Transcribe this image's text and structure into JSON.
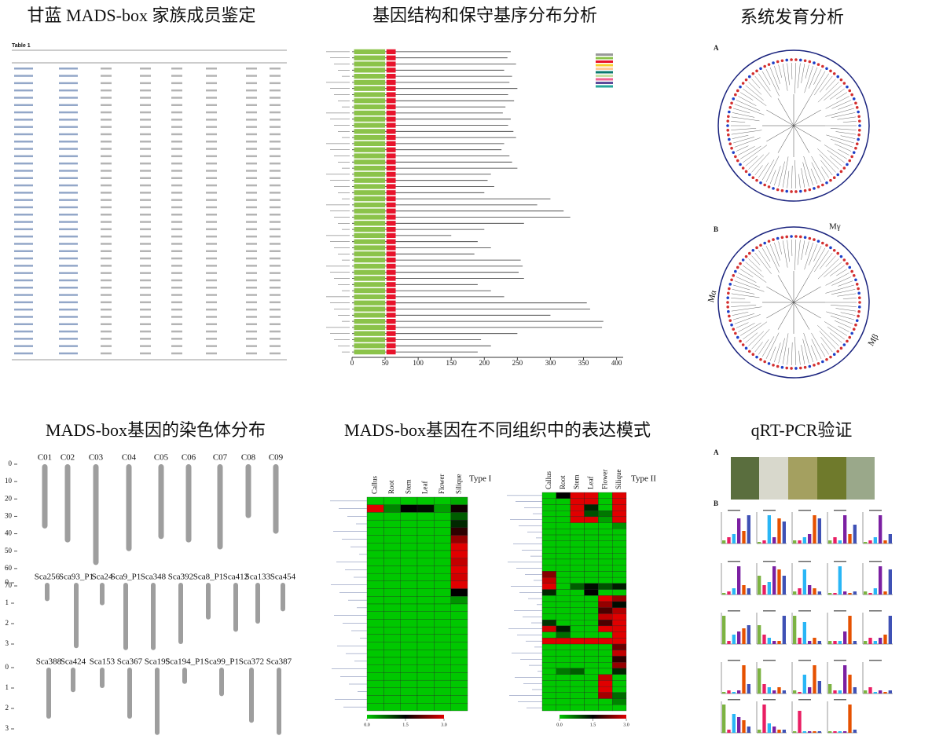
{
  "table_panel": {
    "title": "甘蓝 MADS-box 家族成员鉴定",
    "caption": "Table 1"
  },
  "gene_structure": {
    "title": "基因结构和保守基序分布分析",
    "lengths": [
      240,
      235,
      248,
      230,
      242,
      238,
      250,
      236,
      245,
      232,
      228,
      240,
      236,
      244,
      248,
      230,
      226,
      238,
      242,
      250,
      210,
      205,
      215,
      200,
      300,
      280,
      320,
      330,
      260,
      200,
      150,
      190,
      210,
      185,
      255,
      258,
      252,
      260,
      190,
      210,
      230,
      355,
      360,
      300,
      380,
      378,
      250,
      195,
      210,
      190
    ],
    "motifs": [
      {
        "color": "#8bc34a",
        "start": 3,
        "end": 50
      },
      {
        "color": "#e8132b",
        "start": 52,
        "end": 66
      }
    ],
    "xlim": [
      0,
      410
    ],
    "xticks": [
      0,
      50,
      100,
      150,
      200,
      250,
      300,
      350,
      400
    ]
  },
  "phylogeny": {
    "title": "系统发育分析",
    "tree_a_label": "A",
    "tree_b_label": "B",
    "clades_b": [
      "Mγ",
      "Mα",
      "Mβ"
    ]
  },
  "chromosome": {
    "title": "MADS-box基因的染色体分布",
    "ylim": [
      0,
      70
    ],
    "yticks": [
      0,
      10,
      20,
      30,
      40,
      50,
      60,
      70
    ],
    "chromosomes": [
      "C01",
      "C02",
      "C03",
      "C04",
      "C05",
      "C06",
      "C07",
      "C08",
      "C09"
    ],
    "lengths": [
      37,
      45,
      58,
      50,
      43,
      45,
      49,
      31,
      40
    ],
    "scaffold_rows": [
      {
        "names": [
          "Sca256",
          "Sca93_P1",
          "Sca24",
          "Sca9_P1",
          "Sca348",
          "Sca392",
          "Sca8_P1",
          "Sca412",
          "Sca133",
          "Sca454"
        ],
        "lengths": [
          0.9,
          3.2,
          1.1,
          3.3,
          3.3,
          3.0,
          1.8,
          2.4,
          2.0,
          1.4
        ],
        "ylim": [
          0,
          3.5
        ],
        "yticks": [
          0,
          1,
          2,
          3
        ]
      },
      {
        "names": [
          "Sca388",
          "Sca424",
          "Sca153",
          "Sca367",
          "Sca195",
          "Sca194_P1",
          "Sca99_P1",
          "Sca372",
          "Sca387"
        ],
        "lengths": [
          2.5,
          1.2,
          1.0,
          2.5,
          3.3,
          0.8,
          1.4,
          2.7,
          3.3
        ],
        "ylim": [
          0,
          3.5
        ],
        "yticks": [
          0,
          1,
          2,
          3
        ]
      }
    ]
  },
  "heatmap": {
    "title": "MADS-box基因在不同组织中的表达模式",
    "tissues": [
      "Callus",
      "Root",
      "Stem",
      "Leaf",
      "Flower",
      "Silique"
    ],
    "colors": [
      "#00c800",
      "#000000",
      "#e00000"
    ],
    "scale_ticks": [
      {
        "value": 0,
        "label": "0.0"
      },
      {
        "value": 1.5,
        "label": "1.5"
      },
      {
        "value": 3,
        "label": "3.0"
      }
    ],
    "groups": [
      {
        "name": "Type I",
        "rows": [
          [
            0,
            0,
            0,
            0,
            0,
            0.2
          ],
          [
            3,
            0.5,
            1.5,
            1.4,
            0.3,
            1.6
          ],
          [
            0,
            0,
            0,
            0,
            0,
            0.8
          ],
          [
            0,
            0,
            0,
            0,
            0,
            1.2
          ],
          [
            0,
            0,
            0,
            0,
            0,
            1.8
          ],
          [
            0,
            0,
            0,
            0,
            0,
            2.5
          ],
          [
            0,
            0,
            0,
            0,
            0,
            3
          ],
          [
            0,
            0,
            0,
            0,
            0,
            3
          ],
          [
            0,
            0,
            0,
            0,
            0,
            2.8
          ],
          [
            0,
            0,
            0,
            0,
            0,
            3
          ],
          [
            0,
            0,
            0,
            0,
            0,
            2.9
          ],
          [
            0,
            0,
            0,
            0,
            0,
            3
          ],
          [
            0,
            0,
            0,
            0,
            0,
            1.5
          ],
          [
            0,
            0,
            0,
            0,
            0,
            0.4
          ],
          [
            0,
            0,
            0,
            0,
            0,
            0
          ],
          [
            0,
            0,
            0,
            0,
            0,
            0
          ],
          [
            0,
            0,
            0,
            0,
            0,
            0
          ],
          [
            0,
            0,
            0,
            0,
            0,
            0
          ],
          [
            0,
            0,
            0,
            0,
            0,
            0
          ],
          [
            0,
            0,
            0,
            0,
            0,
            0
          ],
          [
            0,
            0,
            0,
            0,
            0,
            0
          ],
          [
            0,
            0,
            0,
            0,
            0,
            0
          ],
          [
            0,
            0,
            0,
            0,
            0,
            0
          ],
          [
            0,
            0,
            0,
            0,
            0,
            0
          ],
          [
            0,
            0,
            0,
            0,
            0,
            0
          ],
          [
            0,
            0,
            0,
            0,
            0,
            0
          ],
          [
            0,
            0,
            0,
            0,
            0,
            0
          ],
          [
            0,
            0,
            0,
            0,
            0,
            0
          ]
        ]
      },
      {
        "name": "Type II",
        "rows": [
          [
            0,
            1.5,
            3,
            3,
            0,
            3
          ],
          [
            0,
            0,
            3,
            3,
            0,
            3
          ],
          [
            0,
            0,
            3,
            1.2,
            0,
            3
          ],
          [
            0,
            0,
            3,
            0.9,
            0.6,
            3
          ],
          [
            0,
            0,
            3,
            3,
            0.3,
            3
          ],
          [
            0,
            0,
            0,
            0,
            0,
            0.4
          ],
          [
            0,
            0,
            0,
            0,
            0,
            0
          ],
          [
            0,
            0,
            0,
            0,
            0,
            0
          ],
          [
            0,
            0,
            0,
            0,
            0,
            0
          ],
          [
            0,
            0,
            0,
            0,
            0,
            0
          ],
          [
            0,
            0,
            0,
            0,
            0,
            0
          ],
          [
            0,
            0,
            0,
            0,
            0,
            0
          ],
          [
            0,
            0,
            0,
            0,
            0,
            0
          ],
          [
            2.4,
            0,
            0,
            0,
            0,
            0
          ],
          [
            2.8,
            0,
            0,
            0,
            0,
            0
          ],
          [
            3,
            0,
            0.8,
            1.4,
            0.9,
            1.3
          ],
          [
            1.2,
            0,
            0,
            1.5,
            0,
            0
          ],
          [
            0,
            0,
            0,
            0,
            3,
            2.5
          ],
          [
            0,
            0,
            0,
            0,
            2.5,
            1.4
          ],
          [
            0,
            0,
            0,
            0,
            2,
            2.7
          ],
          [
            0,
            0,
            0,
            0,
            2.8,
            3
          ],
          [
            1.1,
            0,
            0,
            0,
            2,
            3
          ],
          [
            2.9,
            1.3,
            0,
            0,
            3,
            3
          ],
          [
            0,
            0.7,
            0,
            0,
            0,
            3
          ],
          [
            3,
            3,
            3,
            3,
            3,
            3
          ],
          [
            0,
            0,
            0,
            0,
            0,
            2.2
          ],
          [
            0,
            0,
            0,
            0,
            0,
            2.8
          ],
          [
            0,
            0,
            0,
            0,
            0,
            1.8
          ],
          [
            0,
            0,
            0,
            0,
            0,
            2.5
          ],
          [
            0,
            0.6,
            0.8,
            0,
            0,
            1.2
          ],
          [
            0,
            0,
            0,
            0,
            2.8,
            0
          ],
          [
            0,
            0,
            0,
            0,
            3,
            0
          ],
          [
            0,
            0,
            0,
            0,
            3,
            0
          ],
          [
            0,
            0,
            0,
            0,
            2.6,
            0.7
          ],
          [
            0,
            0,
            0,
            0,
            0,
            0.5
          ],
          [
            0,
            0,
            0,
            0,
            0,
            0
          ]
        ]
      }
    ]
  },
  "qrt": {
    "title": "qRT-PCR验证",
    "photo_label": "A",
    "chart_label": "B",
    "bar_colors": [
      "#7cb342",
      "#e91e63",
      "#29b6f6",
      "#7b1fa2",
      "#e65100",
      "#3f51b5"
    ],
    "charts": [
      [
        0.1,
        0.2,
        0.3,
        0.8,
        0.4,
        0.9
      ],
      [
        0.05,
        0.1,
        0.9,
        0.2,
        0.8,
        0.7
      ],
      [
        0.1,
        0.1,
        0.2,
        0.3,
        0.9,
        0.8
      ],
      [
        0.1,
        0.2,
        0.1,
        0.9,
        0.3,
        0.6
      ],
      [
        0.05,
        0.1,
        0.2,
        0.9,
        0.1,
        0.3
      ],
      [
        0.05,
        0.1,
        0.2,
        0.9,
        0.3,
        0.2
      ],
      [
        0.6,
        0.3,
        0.4,
        0.9,
        0.8,
        0.6
      ],
      [
        0.1,
        0.2,
        0.8,
        0.3,
        0.2,
        0.1
      ],
      [
        0.05,
        0.05,
        0.9,
        0.1,
        0.05,
        0.1
      ],
      [
        0.1,
        0.05,
        0.2,
        0.9,
        0.1,
        0.8
      ],
      [
        0.9,
        0.1,
        0.3,
        0.4,
        0.5,
        0.6
      ],
      [
        0.6,
        0.3,
        0.2,
        0.1,
        0.1,
        0.9
      ],
      [
        0.9,
        0.2,
        0.7,
        0.1,
        0.2,
        0.1
      ],
      [
        0.1,
        0.1,
        0.1,
        0.4,
        0.9,
        0.1
      ],
      [
        0.1,
        0.2,
        0.1,
        0.2,
        0.3,
        0.9
      ],
      [
        0.05,
        0.1,
        0.05,
        0.1,
        0.9,
        0.3
      ],
      [
        0.8,
        0.3,
        0.2,
        0.1,
        0.2,
        0.1
      ],
      [
        0.1,
        0.05,
        0.6,
        0.2,
        0.9,
        0.4
      ],
      [
        0.3,
        0.1,
        0.1,
        0.9,
        0.6,
        0.2
      ],
      [
        0.1,
        0.2,
        0.05,
        0.1,
        0.05,
        0.1
      ],
      [
        0.9,
        0.1,
        0.6,
        0.5,
        0.4,
        0.2
      ],
      [
        0.1,
        0.9,
        0.3,
        0.2,
        0.1,
        0.1
      ],
      [
        0.05,
        0.7,
        0.05,
        0.05,
        0.05,
        0.05
      ],
      [
        0.05,
        0.05,
        0.05,
        0.05,
        0.9,
        0.1
      ]
    ]
  }
}
